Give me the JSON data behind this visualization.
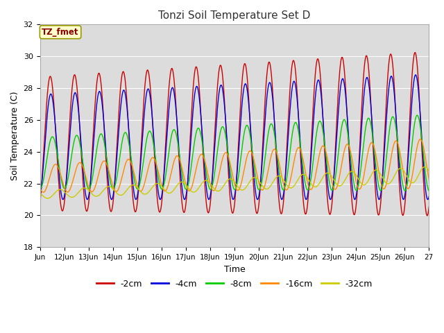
{
  "title": "Tonzi Soil Temperature Set D",
  "xlabel": "Time",
  "ylabel": "Soil Temperature (C)",
  "ylim": [
    18,
    32
  ],
  "xlim": [
    0,
    16
  ],
  "fig_bg": "#ffffff",
  "plot_bg": "#dcdcdc",
  "legend_entries": [
    "-2cm",
    "-4cm",
    "-8cm",
    "-16cm",
    "-32cm"
  ],
  "legend_colors": [
    "#cc0000",
    "#0000dd",
    "#00cc00",
    "#ff8800",
    "#cccc00"
  ],
  "annotation_text": "TZ_fmet",
  "annotation_bg": "#ffffcc",
  "annotation_border": "#cccc00",
  "tick_labels": [
    "Jun",
    "12Jun",
    "13Jun",
    "14Jun",
    "15Jun",
    "16Jun",
    "17Jun",
    "18Jun",
    "19Jun",
    "20Jun",
    "21Jun",
    "22Jun",
    "23Jun",
    "24Jun",
    "25Jun",
    "26Jun",
    "27"
  ],
  "grid_color": "#ffffff",
  "yticks": [
    18,
    20,
    22,
    24,
    26,
    28,
    30,
    32
  ],
  "num_points": 3200
}
